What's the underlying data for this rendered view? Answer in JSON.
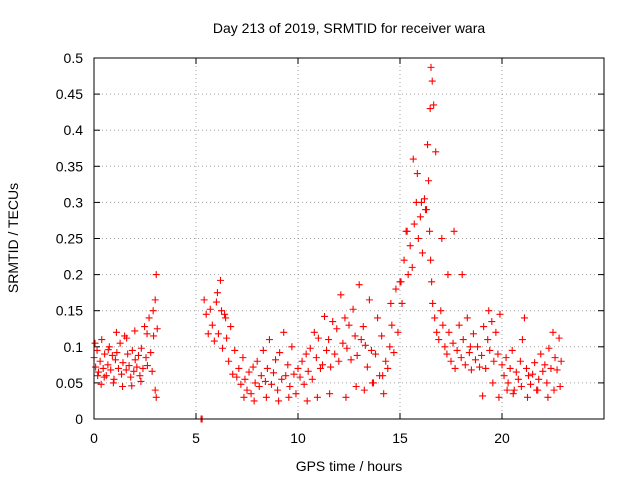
{
  "chart_data": {
    "type": "scatter",
    "title": "Day 213 of 2019, SRMTID for receiver wara",
    "xlabel": "GPS time / hours",
    "ylabel": "SRMTID / TECUs",
    "xlim": [
      0,
      25
    ],
    "ylim": [
      0,
      0.5
    ],
    "x_ticks": [
      0,
      5,
      10,
      15,
      20
    ],
    "x_tick_labels": [
      "0",
      "5",
      "10",
      "15",
      "20"
    ],
    "y_ticks": [
      0,
      0.05,
      0.1,
      0.15,
      0.2,
      0.25,
      0.3,
      0.35,
      0.4,
      0.45,
      0.5
    ],
    "y_tick_labels": [
      "0",
      "0.05",
      "0.1",
      "0.15",
      "0.2",
      "0.25",
      "0.3",
      "0.35",
      "0.4",
      "0.45",
      "0.5"
    ],
    "grid": true,
    "marker": "+",
    "color": "#ff0000",
    "series": [
      {
        "name": "SRMTID",
        "x": [
          0.0,
          0.08,
          0.15,
          0.22,
          0.3,
          0.38,
          0.45,
          0.52,
          0.6,
          0.68,
          0.75,
          0.82,
          0.9,
          0.98,
          1.05,
          1.12,
          1.2,
          1.28,
          1.35,
          1.42,
          1.5,
          1.58,
          1.65,
          1.72,
          1.8,
          1.88,
          1.95,
          2.02,
          2.1,
          2.18,
          2.25,
          2.32,
          2.4,
          2.48,
          2.55,
          2.62,
          2.7,
          2.78,
          2.85,
          2.92,
          3.0,
          3.05,
          3.1,
          0.05,
          0.18,
          0.35,
          0.5,
          0.7,
          0.95,
          1.1,
          1.4,
          1.6,
          1.85,
          2.0,
          2.3,
          2.6,
          2.9,
          3.0,
          3.05,
          5.25,
          5.3,
          5.4,
          5.5,
          5.6,
          5.7,
          5.8,
          5.9,
          6.0,
          6.1,
          6.2,
          6.3,
          6.4,
          6.5,
          6.6,
          6.7,
          6.8,
          6.9,
          7.0,
          7.1,
          7.2,
          7.3,
          7.4,
          7.5,
          7.6,
          7.7,
          7.8,
          7.9,
          8.0,
          8.1,
          8.2,
          8.3,
          8.4,
          8.5,
          8.6,
          8.7,
          8.8,
          8.9,
          9.0,
          9.1,
          9.2,
          9.3,
          9.4,
          9.5,
          9.6,
          9.7,
          9.8,
          9.9,
          10.0,
          10.1,
          10.2,
          10.3,
          10.4,
          10.5,
          10.6,
          10.7,
          10.8,
          10.9,
          11.0,
          11.1,
          11.2,
          11.3,
          11.4,
          11.5,
          11.6,
          11.7,
          11.8,
          11.9,
          12.0,
          12.1,
          12.2,
          12.3,
          12.4,
          12.5,
          12.6,
          12.7,
          12.8,
          12.9,
          13.0,
          13.1,
          13.2,
          13.3,
          13.4,
          13.5,
          13.6,
          13.7,
          13.8,
          13.9,
          14.0,
          14.1,
          14.2,
          14.3,
          14.4,
          14.5,
          14.6,
          14.7,
          14.8,
          14.9,
          15.0,
          15.1,
          15.2,
          15.3,
          15.4,
          15.5,
          15.6,
          15.7,
          15.8,
          15.9,
          16.0,
          16.1,
          16.2,
          16.3,
          16.4,
          16.45,
          16.5,
          16.55,
          16.6,
          16.7,
          16.8,
          16.9,
          17.0,
          17.1,
          17.2,
          17.3,
          17.4,
          17.5,
          17.6,
          17.7,
          17.8,
          17.9,
          18.0,
          18.1,
          18.2,
          18.3,
          18.4,
          18.5,
          18.6,
          18.7,
          18.8,
          18.9,
          19.0,
          19.1,
          19.2,
          19.3,
          19.4,
          19.5,
          19.6,
          19.7,
          19.8,
          19.9,
          20.0,
          20.1,
          20.2,
          20.3,
          20.4,
          20.5,
          20.6,
          20.7,
          20.8,
          20.9,
          21.0,
          21.1,
          21.2,
          21.3,
          21.4,
          21.5,
          21.6,
          21.7,
          21.8,
          21.9,
          22.0,
          22.1,
          22.2,
          22.3,
          22.4,
          22.5,
          22.6,
          22.7,
          22.8,
          22.9,
          6.05,
          6.25,
          6.45,
          7.35,
          7.85,
          8.45,
          9.05,
          9.55,
          10.45,
          10.95,
          11.55,
          12.35,
          12.85,
          13.25,
          13.65,
          14.15,
          14.55,
          15.05,
          15.35,
          15.65,
          15.85,
          16.05,
          16.25,
          16.35,
          16.48,
          16.52,
          16.58,
          16.65,
          16.75,
          17.05,
          17.35,
          17.65,
          18.05,
          18.45,
          19.05,
          19.35,
          19.55,
          19.85,
          20.25,
          20.55,
          20.95,
          21.25,
          21.75,
          22.25,
          22.55,
          22.85
        ],
        "y": [
          0.085,
          0.072,
          0.095,
          0.065,
          0.08,
          0.11,
          0.07,
          0.09,
          0.06,
          0.075,
          0.1,
          0.068,
          0.088,
          0.055,
          0.082,
          0.092,
          0.07,
          0.105,
          0.062,
          0.078,
          0.115,
          0.068,
          0.09,
          0.074,
          0.058,
          0.095,
          0.066,
          0.082,
          0.072,
          0.088,
          0.06,
          0.098,
          0.07,
          0.128,
          0.085,
          0.074,
          0.14,
          0.092,
          0.066,
          0.115,
          0.165,
          0.2,
          0.125,
          0.105,
          0.06,
          0.048,
          0.058,
          0.096,
          0.05,
          0.12,
          0.045,
          0.112,
          0.046,
          0.122,
          0.052,
          0.118,
          0.15,
          0.04,
          0.03,
          0.0,
          0.0,
          0.165,
          0.145,
          0.118,
          0.152,
          0.13,
          0.108,
          0.162,
          0.118,
          0.192,
          0.098,
          0.145,
          0.112,
          0.08,
          0.128,
          0.062,
          0.095,
          0.058,
          0.07,
          0.048,
          0.085,
          0.055,
          0.04,
          0.065,
          0.035,
          0.072,
          0.05,
          0.08,
          0.045,
          0.06,
          0.095,
          0.052,
          0.07,
          0.11,
          0.048,
          0.064,
          0.082,
          0.04,
          0.092,
          0.055,
          0.12,
          0.06,
          0.075,
          0.045,
          0.1,
          0.062,
          0.035,
          0.07,
          0.058,
          0.08,
          0.048,
          0.09,
          0.066,
          0.098,
          0.055,
          0.12,
          0.085,
          0.112,
          0.07,
          0.075,
          0.142,
          0.095,
          0.11,
          0.072,
          0.135,
          0.09,
          0.125,
          0.08,
          0.172,
          0.105,
          0.14,
          0.098,
          0.13,
          0.082,
          0.152,
          0.115,
          0.088,
          0.186,
          0.11,
          0.128,
          0.102,
          0.072,
          0.165,
          0.095,
          0.05,
          0.09,
          0.14,
          0.06,
          0.115,
          0.035,
          0.08,
          0.07,
          0.1,
          0.13,
          0.092,
          0.18,
          0.12,
          0.19,
          0.16,
          0.22,
          0.26,
          0.2,
          0.24,
          0.21,
          0.27,
          0.3,
          0.25,
          0.28,
          0.23,
          0.305,
          0.29,
          0.33,
          0.26,
          0.22,
          0.19,
          0.16,
          0.14,
          0.12,
          0.11,
          0.15,
          0.13,
          0.1,
          0.09,
          0.12,
          0.08,
          0.105,
          0.07,
          0.095,
          0.13,
          0.085,
          0.11,
          0.075,
          0.14,
          0.092,
          0.068,
          0.118,
          0.082,
          0.1,
          0.072,
          0.088,
          0.128,
          0.07,
          0.11,
          0.095,
          0.135,
          0.08,
          0.12,
          0.09,
          0.145,
          0.075,
          0.06,
          0.085,
          0.05,
          0.07,
          0.095,
          0.04,
          0.065,
          0.055,
          0.08,
          0.11,
          0.14,
          0.07,
          0.06,
          0.048,
          0.062,
          0.078,
          0.04,
          0.055,
          0.09,
          0.066,
          0.075,
          0.05,
          0.098,
          0.07,
          0.12,
          0.085,
          0.068,
          0.112,
          0.08,
          0.175,
          0.15,
          0.14,
          0.03,
          0.025,
          0.03,
          0.025,
          0.03,
          0.025,
          0.03,
          0.035,
          0.03,
          0.045,
          0.04,
          0.05,
          0.06,
          0.16,
          0.19,
          0.26,
          0.36,
          0.34,
          0.3,
          0.29,
          0.38,
          0.43,
          0.487,
          0.468,
          0.435,
          0.37,
          0.25,
          0.2,
          0.26,
          0.2,
          0.1,
          0.032,
          0.15,
          0.05,
          0.03,
          0.04,
          0.035,
          0.045,
          0.03,
          0.04,
          0.03,
          0.04,
          0.045
        ]
      }
    ]
  }
}
